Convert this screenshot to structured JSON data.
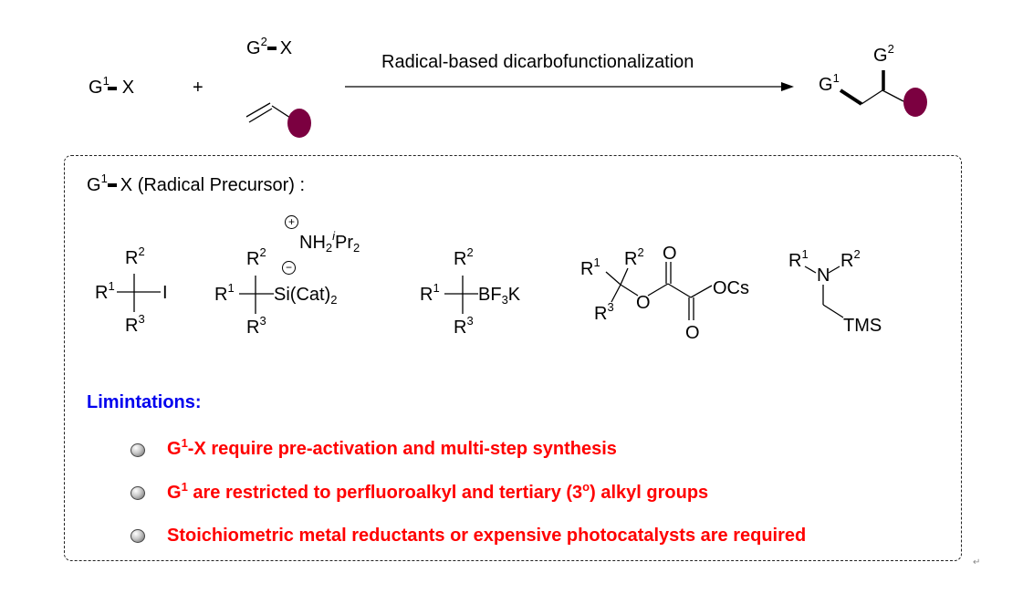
{
  "colors": {
    "substituent": "#7B0040",
    "limitations_title": "#0000EE",
    "limitations_text": "#FF0000"
  },
  "scheme": {
    "reagent1": {
      "g": "G",
      "sup": "1",
      "x": "X"
    },
    "plus": "+",
    "reagent2": {
      "g": "G",
      "sup": "2",
      "x": "X"
    },
    "arrow_label": "Radical-based dicarbofunctionalization",
    "product": {
      "g1": "G",
      "g1_sup": "1",
      "g2": "G",
      "g2_sup": "2"
    }
  },
  "precursors": {
    "heading": {
      "g": "G",
      "sup": "1",
      "rest": "X (Radical Precursor) :"
    },
    "iodide": {
      "r1": "R",
      "r1_sup": "1",
      "r2": "R",
      "r2_sup": "2",
      "r3": "R",
      "r3_sup": "3",
      "x": "I"
    },
    "silicate": {
      "r1": "R",
      "r1_sup": "1",
      "r2": "R",
      "r2_sup": "2",
      "r3": "R",
      "r3_sup": "3",
      "si": "Si(Cat)",
      "si_sub": "2",
      "cation": "NH",
      "cation_sub": "2",
      "cation_sup": "i",
      "cation_pr": "Pr",
      "cation_pr_sub": "2",
      "plus": "+",
      "minus": "−"
    },
    "trifluoroborate": {
      "r1": "R",
      "r1_sup": "1",
      "r2": "R",
      "r2_sup": "2",
      "r3": "R",
      "r3_sup": "3",
      "bf": "BF",
      "bf_sub": "3",
      "k": "K"
    },
    "oxalate": {
      "r1": "R",
      "r1_sup": "1",
      "r2": "R",
      "r2_sup": "2",
      "r3": "R",
      "r3_sup": "3",
      "o_ester": "O",
      "o_top": "O",
      "o_bottom": "O",
      "ocs": "OCs"
    },
    "silylamine": {
      "r1": "R",
      "r1_sup": "1",
      "r2": "R",
      "r2_sup": "2",
      "n": "N",
      "tms": "TMS"
    }
  },
  "limitations": {
    "title": "Limintations:",
    "items": [
      {
        "pre": "G",
        "sup": "1",
        "text": "-X require pre-activation and multi-step synthesis"
      },
      {
        "pre": "G",
        "sup": "1",
        "text": " are restricted to perfluoroalkyl and tertiary (3",
        "sup2": "o",
        "text2": ") alkyl groups"
      },
      {
        "pre": "",
        "sup": "",
        "text": "Stoichiometric metal reductants or expensive photocatalysts are required"
      }
    ]
  },
  "paragraph_mark": "↵"
}
